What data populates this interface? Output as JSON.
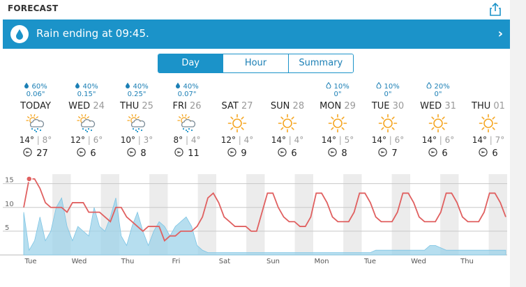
{
  "header": {
    "title": "FORECAST",
    "share_icon": "share-icon"
  },
  "banner": {
    "text": "Rain ending at 09:45.",
    "icon": "raindrop-icon",
    "chevron": "›",
    "color": "#1b93c9"
  },
  "tabs": [
    {
      "label": "Day",
      "active": true
    },
    {
      "label": "Hour",
      "active": false
    },
    {
      "label": "Summary",
      "active": false
    }
  ],
  "days": [
    {
      "pop": "60%",
      "amount": "0.06\"",
      "name": "TODAY",
      "num": "",
      "icon": "rain-partly-sunny-icon",
      "high": "14°",
      "low": "8°",
      "wind": "27"
    },
    {
      "pop": "40%",
      "amount": "0.15\"",
      "name": "WED",
      "num": "24",
      "icon": "rain-partly-sunny-icon",
      "high": "12°",
      "low": "6°",
      "wind": "6"
    },
    {
      "pop": "40%",
      "amount": "0.25\"",
      "name": "THU",
      "num": "25",
      "icon": "rain-partly-sunny-icon",
      "high": "10°",
      "low": "3°",
      "wind": "8"
    },
    {
      "pop": "40%",
      "amount": "0.07\"",
      "name": "FRI",
      "num": "26",
      "icon": "rain-partly-sunny-icon",
      "high": "8°",
      "low": "4°",
      "wind": "11"
    },
    {
      "pop": "",
      "amount": "",
      "name": "SAT",
      "num": "27",
      "icon": "sun-icon",
      "high": "12°",
      "low": "4°",
      "wind": "9"
    },
    {
      "pop": "",
      "amount": "",
      "name": "SUN",
      "num": "28",
      "icon": "sun-icon",
      "high": "14°",
      "low": "4°",
      "wind": "6"
    },
    {
      "pop": "10%",
      "amount": "0\"",
      "name": "MON",
      "num": "29",
      "icon": "sun-icon",
      "high": "14°",
      "low": "5°",
      "wind": "8"
    },
    {
      "pop": "10%",
      "amount": "0\"",
      "name": "TUE",
      "num": "30",
      "icon": "sun-icon",
      "high": "14°",
      "low": "6°",
      "wind": "7"
    },
    {
      "pop": "20%",
      "amount": "0\"",
      "name": "WED",
      "num": "31",
      "icon": "sun-icon",
      "high": "14°",
      "low": "6°",
      "wind": "6"
    },
    {
      "pop": "",
      "amount": "",
      "name": "THU",
      "num": "01",
      "icon": "sun-icon",
      "high": "14°",
      "low": "7°",
      "wind": "6"
    }
  ],
  "chart_data": {
    "type": "line",
    "y_ticks": [
      "15",
      "10",
      "5"
    ],
    "ylim": [
      0,
      17
    ],
    "x_labels": [
      "Tue",
      "Wed",
      "Thu",
      "Fri",
      "Sat",
      "Sun",
      "Mon",
      "Tue",
      "Wed",
      "Thu"
    ],
    "series": [
      {
        "color": "#e06060",
        "values": [
          10,
          16,
          16,
          14,
          11,
          10,
          10,
          10,
          9,
          11,
          11,
          11,
          9,
          9,
          9,
          8,
          7,
          10,
          10,
          8,
          7,
          6,
          5,
          6,
          6,
          6,
          3,
          4,
          4,
          5,
          5,
          5,
          6,
          8,
          12,
          13,
          11,
          8,
          7,
          6,
          6,
          6,
          5,
          5,
          9,
          13,
          13,
          10,
          8,
          7,
          7,
          6,
          6,
          8,
          13,
          13,
          11,
          8,
          7,
          7,
          7,
          9,
          13,
          13,
          11,
          8,
          7,
          7,
          7,
          9,
          13,
          13,
          11,
          8,
          7,
          7,
          7,
          9,
          13,
          13,
          11,
          8,
          7,
          7,
          7,
          9,
          13,
          13,
          11,
          8
        ]
      },
      {
        "color": "#9dd3ea",
        "values": [
          9,
          1,
          3,
          8,
          3,
          5,
          10,
          12,
          6,
          3,
          6,
          5,
          4,
          10,
          6,
          5,
          8,
          12,
          4,
          2,
          6,
          9,
          5,
          2,
          5,
          7,
          6,
          4,
          6,
          7,
          8,
          6,
          2,
          1,
          0.5,
          0.5,
          0.5,
          0.5,
          0.5,
          0.5,
          0.5,
          0.5,
          0.5,
          0.5,
          0.5,
          0.5,
          0.5,
          0.5,
          0.5,
          0.5,
          0.5,
          0.5,
          0.5,
          0.5,
          0.5,
          0.5,
          0.5,
          0.5,
          0.5,
          0.5,
          0.5,
          0.5,
          0.5,
          0.5,
          0.5,
          1,
          1,
          1,
          1,
          1,
          1,
          1,
          1,
          1,
          1,
          2,
          2,
          1.5,
          1,
          1,
          1,
          1,
          1,
          1,
          1,
          1,
          1,
          1,
          1,
          1
        ]
      }
    ]
  }
}
